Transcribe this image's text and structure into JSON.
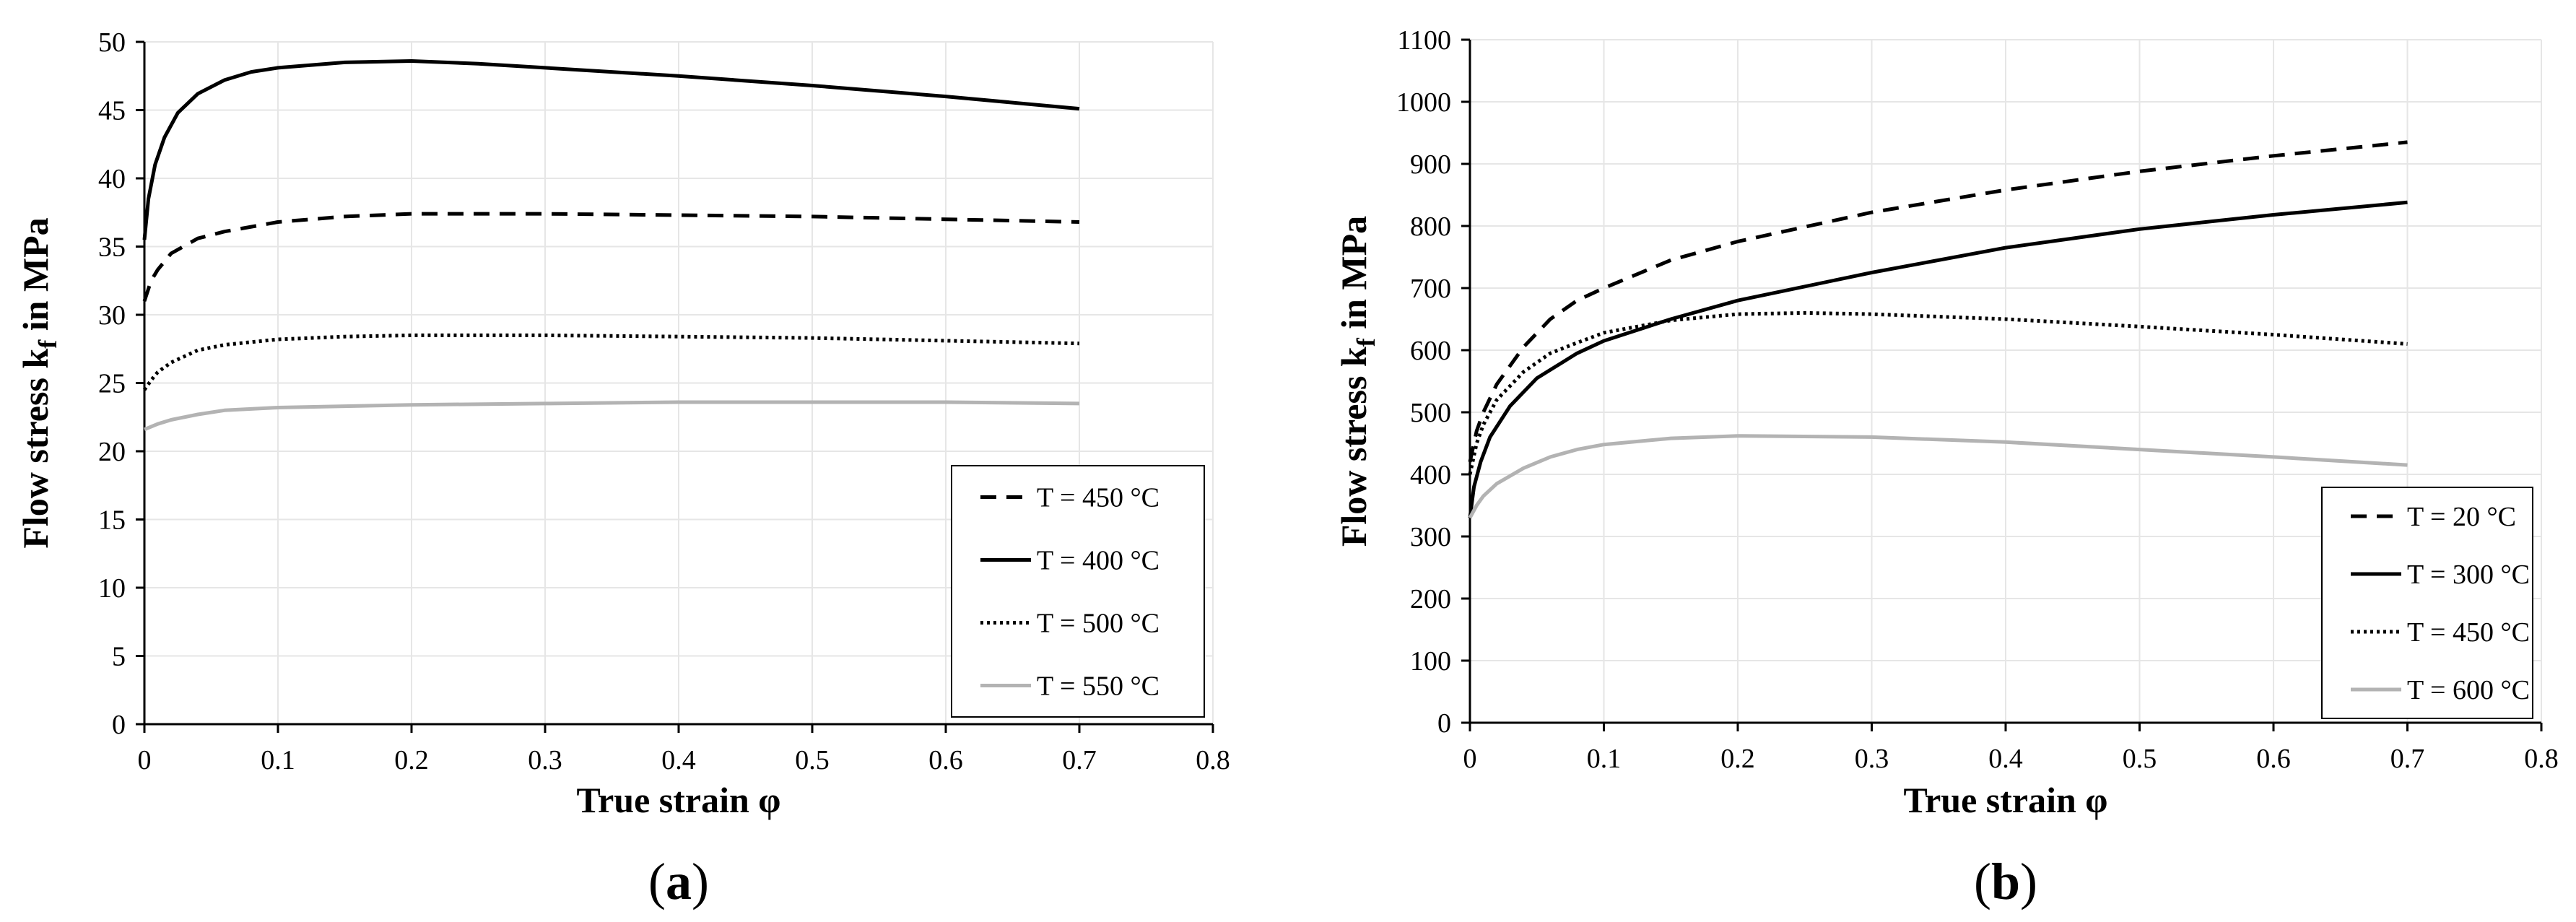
{
  "figure": {
    "panel_a_label": "a",
    "panel_b_label": "b"
  },
  "colors": {
    "black": "#000000",
    "gray": "#b3b3b3",
    "grid": "#e6e6e6"
  },
  "chart_data": [
    {
      "type": "line",
      "panel": "a",
      "title": "",
      "xlabel": "True strain φ",
      "ylabel_main": "Flow stress k",
      "ylabel_sub": "f",
      "ylabel_tail": " in MPa",
      "xlim": [
        0,
        0.8
      ],
      "ylim": [
        0,
        50
      ],
      "xticks": [
        0,
        0.1,
        0.2,
        0.3,
        0.4,
        0.5,
        0.6,
        0.7,
        0.8
      ],
      "xtick_labels": [
        "0",
        "0.1",
        "0.2",
        "0.3",
        "0.4",
        "0.5",
        "0.6",
        "0.7",
        "0.8"
      ],
      "yticks": [
        0,
        5,
        10,
        15,
        20,
        25,
        30,
        35,
        40,
        45,
        50
      ],
      "ytick_labels": [
        "0",
        "5",
        "10",
        "15",
        "20",
        "25",
        "30",
        "35",
        "40",
        "45",
        "50"
      ],
      "grid": true,
      "legend_position": "bottom-right",
      "series": [
        {
          "name": "T = 450 °C",
          "style": "dashed",
          "color": "#000000",
          "x": [
            0,
            0.005,
            0.01,
            0.02,
            0.04,
            0.06,
            0.1,
            0.15,
            0.2,
            0.3,
            0.4,
            0.5,
            0.6,
            0.7
          ],
          "y": [
            31.0,
            32.5,
            33.3,
            34.5,
            35.6,
            36.1,
            36.8,
            37.2,
            37.4,
            37.4,
            37.3,
            37.2,
            37.0,
            36.8
          ]
        },
        {
          "name": "T = 400 °C",
          "style": "solid",
          "color": "#000000",
          "x": [
            0,
            0.003,
            0.008,
            0.015,
            0.025,
            0.04,
            0.06,
            0.08,
            0.1,
            0.15,
            0.2,
            0.25,
            0.3,
            0.4,
            0.5,
            0.6,
            0.7
          ],
          "y": [
            35.5,
            38.5,
            41.0,
            43.0,
            44.8,
            46.2,
            47.2,
            47.8,
            48.1,
            48.5,
            48.6,
            48.4,
            48.1,
            47.5,
            46.8,
            46.0,
            45.1
          ]
        },
        {
          "name": "T = 500 °C",
          "style": "dotted",
          "color": "#000000",
          "x": [
            0,
            0.005,
            0.01,
            0.02,
            0.04,
            0.06,
            0.1,
            0.15,
            0.2,
            0.3,
            0.4,
            0.5,
            0.6,
            0.7
          ],
          "y": [
            24.5,
            25.2,
            25.8,
            26.5,
            27.4,
            27.8,
            28.2,
            28.4,
            28.5,
            28.5,
            28.4,
            28.3,
            28.1,
            27.9
          ]
        },
        {
          "name": "T = 550 °C",
          "style": "solid",
          "color": "#b3b3b3",
          "x": [
            0,
            0.01,
            0.02,
            0.04,
            0.06,
            0.1,
            0.15,
            0.2,
            0.3,
            0.4,
            0.5,
            0.6,
            0.7
          ],
          "y": [
            21.6,
            22.0,
            22.3,
            22.7,
            23.0,
            23.2,
            23.3,
            23.4,
            23.5,
            23.6,
            23.6,
            23.6,
            23.5
          ]
        }
      ]
    },
    {
      "type": "line",
      "panel": "b",
      "title": "",
      "xlabel": "True strain φ",
      "ylabel_main": "Flow stress k",
      "ylabel_sub": "f",
      "ylabel_tail": " in MPa",
      "xlim": [
        0,
        0.8
      ],
      "ylim": [
        0,
        1100
      ],
      "xticks": [
        0,
        0.1,
        0.2,
        0.3,
        0.4,
        0.5,
        0.6,
        0.7,
        0.8
      ],
      "xtick_labels": [
        "0",
        "0.1",
        "0.2",
        "0.3",
        "0.4",
        "0.5",
        "0.6",
        "0.7",
        "0.8"
      ],
      "yticks": [
        0,
        100,
        200,
        300,
        400,
        500,
        600,
        700,
        800,
        900,
        1000,
        1100
      ],
      "ytick_labels": [
        "0",
        "100",
        "200",
        "300",
        "400",
        "500",
        "600",
        "700",
        "800",
        "900",
        "1000",
        "1100"
      ],
      "grid": true,
      "legend_position": "bottom-right",
      "series": [
        {
          "name": "T = 20 °C",
          "style": "dashed",
          "color": "#000000",
          "x": [
            0,
            0.005,
            0.01,
            0.02,
            0.04,
            0.06,
            0.08,
            0.1,
            0.15,
            0.2,
            0.3,
            0.4,
            0.5,
            0.6,
            0.7
          ],
          "y": [
            420,
            470,
            500,
            545,
            605,
            650,
            680,
            700,
            745,
            775,
            822,
            858,
            888,
            913,
            935
          ]
        },
        {
          "name": "T = 300 °C",
          "style": "solid",
          "color": "#000000",
          "x": [
            0,
            0.003,
            0.008,
            0.015,
            0.03,
            0.05,
            0.08,
            0.1,
            0.15,
            0.2,
            0.3,
            0.4,
            0.5,
            0.6,
            0.7
          ],
          "y": [
            330,
            380,
            420,
            460,
            510,
            555,
            595,
            615,
            650,
            680,
            725,
            765,
            795,
            818,
            838
          ]
        },
        {
          "name": "T = 450 °C",
          "style": "dotted",
          "color": "#000000",
          "x": [
            0,
            0.005,
            0.01,
            0.02,
            0.04,
            0.06,
            0.08,
            0.1,
            0.15,
            0.2,
            0.25,
            0.3,
            0.4,
            0.5,
            0.6,
            0.7
          ],
          "y": [
            400,
            450,
            480,
            520,
            565,
            595,
            612,
            628,
            648,
            658,
            660,
            658,
            650,
            638,
            625,
            610
          ]
        },
        {
          "name": "T = 600 °C",
          "style": "solid",
          "color": "#b3b3b3",
          "x": [
            0,
            0.005,
            0.01,
            0.02,
            0.04,
            0.06,
            0.08,
            0.1,
            0.15,
            0.2,
            0.3,
            0.4,
            0.5,
            0.6,
            0.7
          ],
          "y": [
            330,
            350,
            365,
            385,
            410,
            428,
            440,
            448,
            458,
            462,
            460,
            452,
            440,
            428,
            415
          ]
        }
      ]
    }
  ]
}
